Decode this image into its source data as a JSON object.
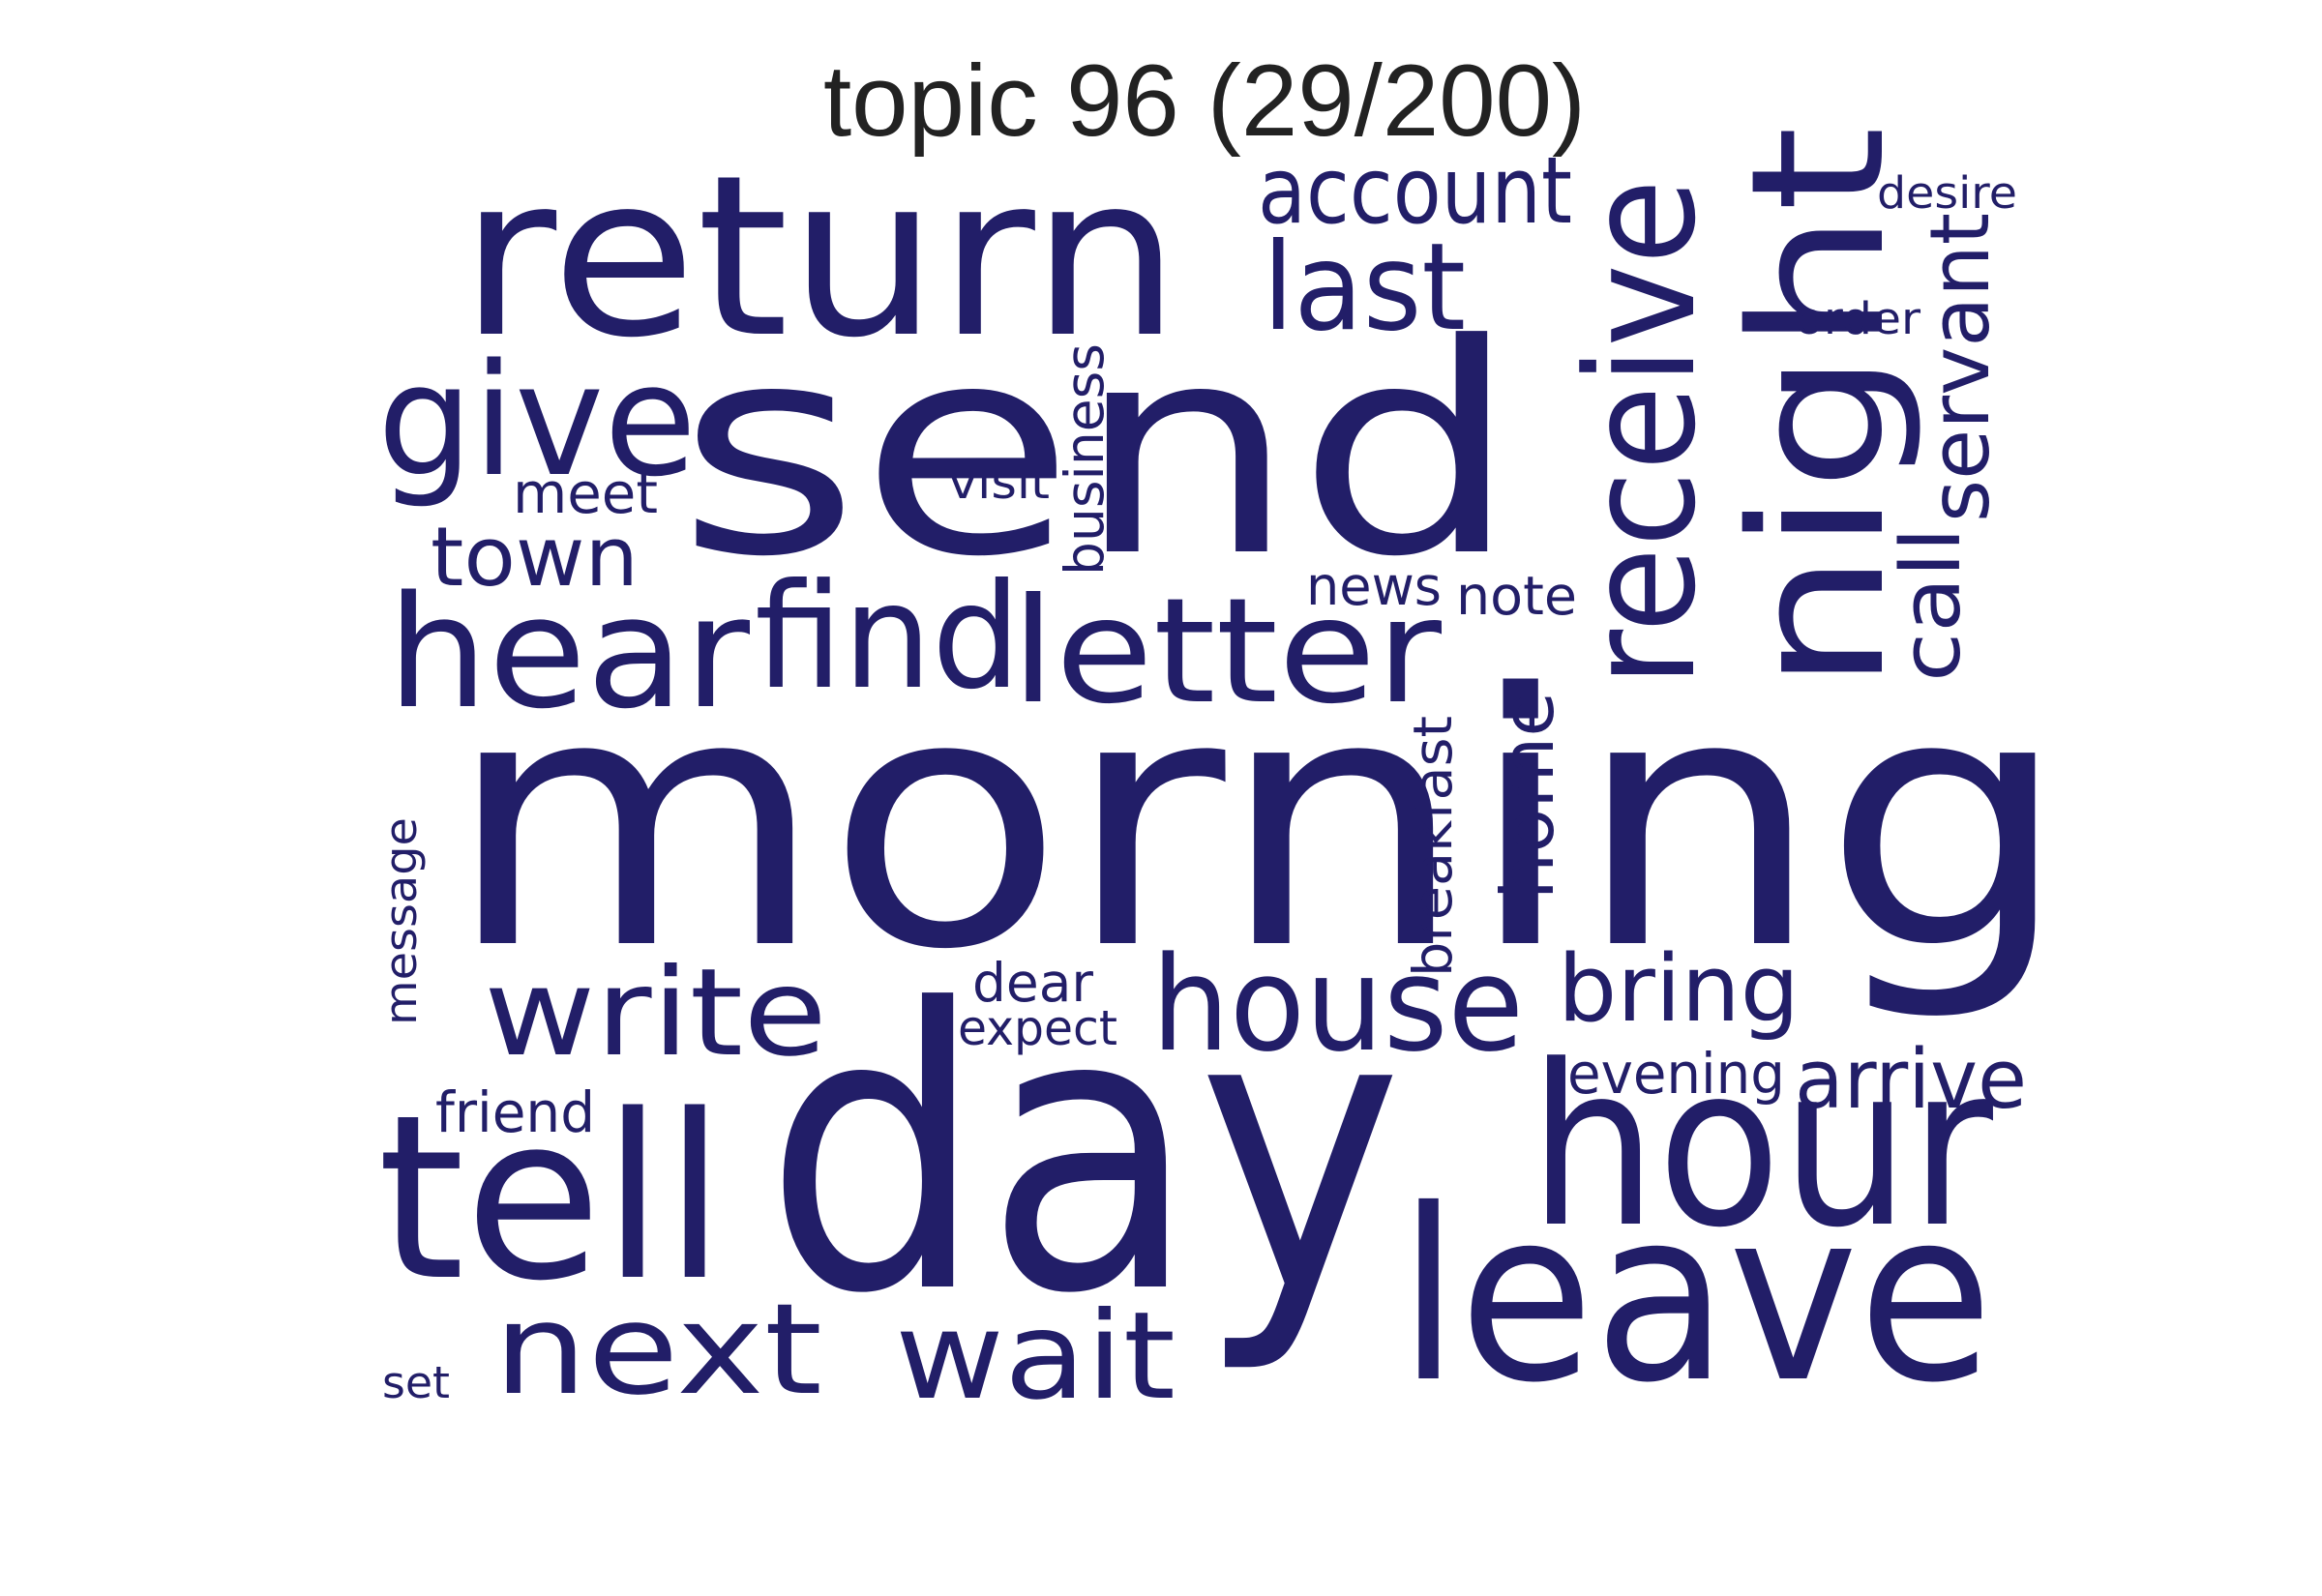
{
  "title": "topic 96 (29/200)",
  "colors": {
    "word": "#221e68",
    "title": "#222222",
    "background": "#ffffff"
  },
  "words": [
    {
      "text": "morning",
      "orientation": "horizontal"
    },
    {
      "text": "day",
      "orientation": "horizontal"
    },
    {
      "text": "send",
      "orientation": "horizontal"
    },
    {
      "text": "return",
      "orientation": "horizontal"
    },
    {
      "text": "night",
      "orientation": "vertical"
    },
    {
      "text": "leave",
      "orientation": "horizontal"
    },
    {
      "text": "tell",
      "orientation": "horizontal"
    },
    {
      "text": "letter",
      "orientation": "horizontal"
    },
    {
      "text": "receive",
      "orientation": "vertical"
    },
    {
      "text": "hour",
      "orientation": "horizontal"
    },
    {
      "text": "hear",
      "orientation": "horizontal"
    },
    {
      "text": "find",
      "orientation": "horizontal"
    },
    {
      "text": "give",
      "orientation": "horizontal"
    },
    {
      "text": "house",
      "orientation": "horizontal"
    },
    {
      "text": "write",
      "orientation": "horizontal"
    },
    {
      "text": "next",
      "orientation": "horizontal"
    },
    {
      "text": "last",
      "orientation": "horizontal"
    },
    {
      "text": "wait",
      "orientation": "horizontal"
    },
    {
      "text": "bring",
      "orientation": "horizontal"
    },
    {
      "text": "servant",
      "orientation": "vertical"
    },
    {
      "text": "account",
      "orientation": "horizontal"
    },
    {
      "text": "call",
      "orientation": "vertical"
    },
    {
      "text": "home",
      "orientation": "vertical"
    },
    {
      "text": "town",
      "orientation": "horizontal"
    },
    {
      "text": "arrive",
      "orientation": "horizontal"
    },
    {
      "text": "breakfast",
      "orientation": "vertical"
    },
    {
      "text": "business",
      "orientation": "vertical"
    },
    {
      "text": "meet",
      "orientation": "horizontal"
    },
    {
      "text": "evening",
      "orientation": "horizontal"
    },
    {
      "text": "friend",
      "orientation": "horizontal"
    },
    {
      "text": "news",
      "orientation": "horizontal"
    },
    {
      "text": "note",
      "orientation": "horizontal"
    },
    {
      "text": "dear",
      "orientation": "horizontal"
    },
    {
      "text": "expect",
      "orientation": "horizontal"
    },
    {
      "text": "visit",
      "orientation": "horizontal"
    },
    {
      "text": "message",
      "orientation": "vertical"
    },
    {
      "text": "order",
      "orientation": "horizontal"
    },
    {
      "text": "desire",
      "orientation": "horizontal"
    },
    {
      "text": "set",
      "orientation": "horizontal"
    }
  ]
}
